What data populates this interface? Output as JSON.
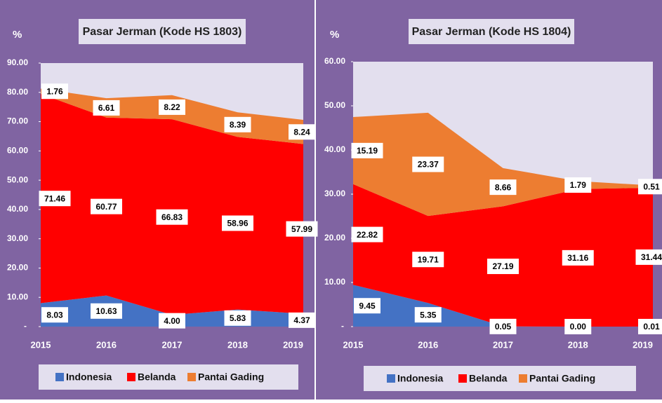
{
  "chart_data": [
    {
      "type": "area",
      "stacked": true,
      "title": "Pasar Jerman (Kode HS 1803)",
      "y_label": "%",
      "categories": [
        "2015",
        "2016",
        "2017",
        "2018",
        "2019"
      ],
      "series": [
        {
          "name": "Indonesia",
          "color": "#4472c4",
          "values": [
            8.03,
            10.63,
            4.0,
            5.83,
            4.37
          ],
          "value_labels": [
            "8.03",
            "10.63",
            "4.00",
            "5.83",
            "4.37"
          ]
        },
        {
          "name": "Belanda",
          "color": "#ff0000",
          "values": [
            71.46,
            60.77,
            66.83,
            58.96,
            57.99
          ],
          "value_labels": [
            "71.46",
            "60.77",
            "66.83",
            "58.96",
            "57.99"
          ]
        },
        {
          "name": "Pantai Gading",
          "color": "#ed7d31",
          "values": [
            1.76,
            6.61,
            8.22,
            8.39,
            8.24
          ],
          "value_labels": [
            "1.76",
            "6.61",
            "8.22",
            "8.39",
            "8.24"
          ]
        }
      ],
      "ylim": [
        0,
        90
      ],
      "yticks": [
        {
          "value": 0,
          "label": "-"
        },
        {
          "value": 10,
          "label": "10.00"
        },
        {
          "value": 20,
          "label": "20.00"
        },
        {
          "value": 30,
          "label": "30.00"
        },
        {
          "value": 40,
          "label": "40.00"
        },
        {
          "value": 50,
          "label": "50.00"
        },
        {
          "value": 60,
          "label": "60.00"
        },
        {
          "value": 70,
          "label": "70.00"
        },
        {
          "value": 80,
          "label": "80.00"
        },
        {
          "value": 90,
          "label": "90.00"
        }
      ],
      "legend": "bottom"
    },
    {
      "type": "area",
      "stacked": true,
      "title": "Pasar Jerman (Kode HS 1804)",
      "y_label": "%",
      "categories": [
        "2015",
        "2016",
        "2017",
        "2018",
        "2019"
      ],
      "series": [
        {
          "name": "Indonesia",
          "color": "#4472c4",
          "values": [
            9.45,
            5.35,
            0.05,
            0.0,
            0.01
          ],
          "value_labels": [
            "9.45",
            "5.35",
            "0.05",
            "0.00",
            "0.01"
          ]
        },
        {
          "name": "Belanda",
          "color": "#ff0000",
          "values": [
            22.82,
            19.71,
            27.19,
            31.16,
            31.44
          ],
          "value_labels": [
            "22.82",
            "19.71",
            "27.19",
            "31.16",
            "31.44"
          ]
        },
        {
          "name": "Pantai Gading",
          "color": "#ed7d31",
          "values": [
            15.19,
            23.37,
            8.66,
            1.79,
            0.51
          ],
          "value_labels": [
            "15.19",
            "23.37",
            "8.66",
            "1.79",
            "0.51"
          ]
        }
      ],
      "ylim": [
        0,
        60
      ],
      "yticks": [
        {
          "value": 0,
          "label": "-"
        },
        {
          "value": 10,
          "label": "10.00"
        },
        {
          "value": 20,
          "label": "20.00"
        },
        {
          "value": 30,
          "label": "30.00"
        },
        {
          "value": 40,
          "label": "40.00"
        },
        {
          "value": 50,
          "label": "50.00"
        },
        {
          "value": 60,
          "label": "60.00"
        }
      ],
      "legend": "bottom"
    }
  ]
}
